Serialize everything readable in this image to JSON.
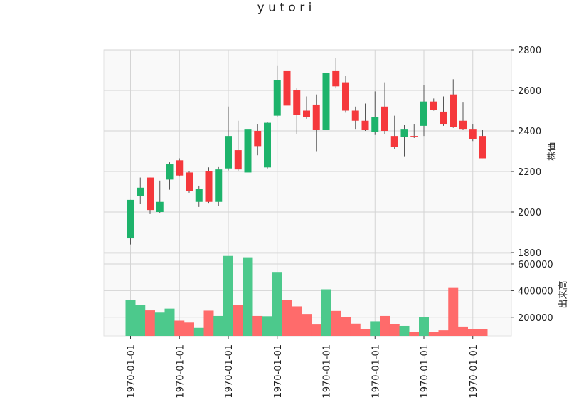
{
  "chart_data": {
    "type": "candlestick",
    "title": "y u t o r i",
    "colors": {
      "up": "#1db36b",
      "down": "#f5383c",
      "volume_up": "#4cc98c",
      "volume_down": "#ff6b6b",
      "wick": "#555555",
      "panel_bg": "#f9f9f9",
      "grid": "#d4d4d4"
    },
    "x_tick_labels": [
      "1970-01-01",
      "1970-01-01",
      "1970-01-01",
      "1970-01-01",
      "1970-01-01",
      "1970-01-01",
      "1970-01-01",
      "1970-01-01"
    ],
    "x_tick_indices": [
      0,
      5,
      10,
      15,
      20,
      25,
      30,
      35
    ],
    "price_axis": {
      "label": "株価",
      "range": [
        1800,
        2800
      ],
      "ticks": [
        1800,
        2000,
        2200,
        2400,
        2600,
        2800
      ],
      "grid": true
    },
    "volume_axis": {
      "label": "出来高",
      "range": [
        60000,
        680000
      ],
      "ticks": [
        200000,
        400000,
        600000
      ],
      "tick_labels": [
        "200000",
        "400000",
        "600000"
      ],
      "grid": true
    },
    "candles": [
      {
        "o": 1870,
        "h": 2060,
        "l": 1840,
        "c": 2060,
        "v": 330000
      },
      {
        "o": 2080,
        "h": 2170,
        "l": 2040,
        "c": 2120,
        "v": 295000
      },
      {
        "o": 2170,
        "h": 2170,
        "l": 1990,
        "c": 2010,
        "v": 252000
      },
      {
        "o": 2000,
        "h": 2155,
        "l": 1995,
        "c": 2050,
        "v": 235000
      },
      {
        "o": 2160,
        "h": 2245,
        "l": 2110,
        "c": 2235,
        "v": 265000
      },
      {
        "o": 2255,
        "h": 2265,
        "l": 2175,
        "c": 2180,
        "v": 175000
      },
      {
        "o": 2195,
        "h": 2200,
        "l": 2095,
        "c": 2105,
        "v": 160000
      },
      {
        "o": 2050,
        "h": 2130,
        "l": 2025,
        "c": 2115,
        "v": 120000
      },
      {
        "o": 2200,
        "h": 2220,
        "l": 2045,
        "c": 2050,
        "v": 250000
      },
      {
        "o": 2050,
        "h": 2225,
        "l": 2030,
        "c": 2210,
        "v": 210000
      },
      {
        "o": 2215,
        "h": 2520,
        "l": 2205,
        "c": 2375,
        "v": 660000
      },
      {
        "o": 2305,
        "h": 2450,
        "l": 2200,
        "c": 2210,
        "v": 290000
      },
      {
        "o": 2195,
        "h": 2570,
        "l": 2185,
        "c": 2410,
        "v": 650000
      },
      {
        "o": 2400,
        "h": 2435,
        "l": 2280,
        "c": 2325,
        "v": 210000
      },
      {
        "o": 2220,
        "h": 2445,
        "l": 2215,
        "c": 2440,
        "v": 208000
      },
      {
        "o": 2475,
        "h": 2720,
        "l": 2470,
        "c": 2650,
        "v": 540000
      },
      {
        "o": 2695,
        "h": 2740,
        "l": 2445,
        "c": 2525,
        "v": 330000
      },
      {
        "o": 2600,
        "h": 2610,
        "l": 2385,
        "c": 2480,
        "v": 282000
      },
      {
        "o": 2500,
        "h": 2570,
        "l": 2460,
        "c": 2470,
        "v": 225000
      },
      {
        "o": 2530,
        "h": 2580,
        "l": 2300,
        "c": 2405,
        "v": 145000
      },
      {
        "o": 2405,
        "h": 2690,
        "l": 2370,
        "c": 2685,
        "v": 410000
      },
      {
        "o": 2695,
        "h": 2760,
        "l": 2610,
        "c": 2620,
        "v": 248000
      },
      {
        "o": 2640,
        "h": 2670,
        "l": 2490,
        "c": 2500,
        "v": 200000
      },
      {
        "o": 2500,
        "h": 2520,
        "l": 2410,
        "c": 2450,
        "v": 152000
      },
      {
        "o": 2450,
        "h": 2535,
        "l": 2400,
        "c": 2405,
        "v": 110000
      },
      {
        "o": 2395,
        "h": 2595,
        "l": 2380,
        "c": 2470,
        "v": 170000
      },
      {
        "o": 2520,
        "h": 2640,
        "l": 2385,
        "c": 2400,
        "v": 210000
      },
      {
        "o": 2375,
        "h": 2475,
        "l": 2310,
        "c": 2320,
        "v": 148000
      },
      {
        "o": 2370,
        "h": 2430,
        "l": 2275,
        "c": 2410,
        "v": 135000
      },
      {
        "o": 2375,
        "h": 2435,
        "l": 2365,
        "c": 2370,
        "v": 90000
      },
      {
        "o": 2425,
        "h": 2625,
        "l": 2375,
        "c": 2545,
        "v": 200000
      },
      {
        "o": 2545,
        "h": 2560,
        "l": 2500,
        "c": 2505,
        "v": 88000
      },
      {
        "o": 2495,
        "h": 2570,
        "l": 2425,
        "c": 2435,
        "v": 102000
      },
      {
        "o": 2580,
        "h": 2655,
        "l": 2415,
        "c": 2420,
        "v": 420000
      },
      {
        "o": 2450,
        "h": 2540,
        "l": 2405,
        "c": 2410,
        "v": 130000
      },
      {
        "o": 2410,
        "h": 2435,
        "l": 2350,
        "c": 2360,
        "v": 110000
      },
      {
        "o": 2375,
        "h": 2405,
        "l": 2265,
        "c": 2265,
        "v": 112000
      }
    ]
  }
}
